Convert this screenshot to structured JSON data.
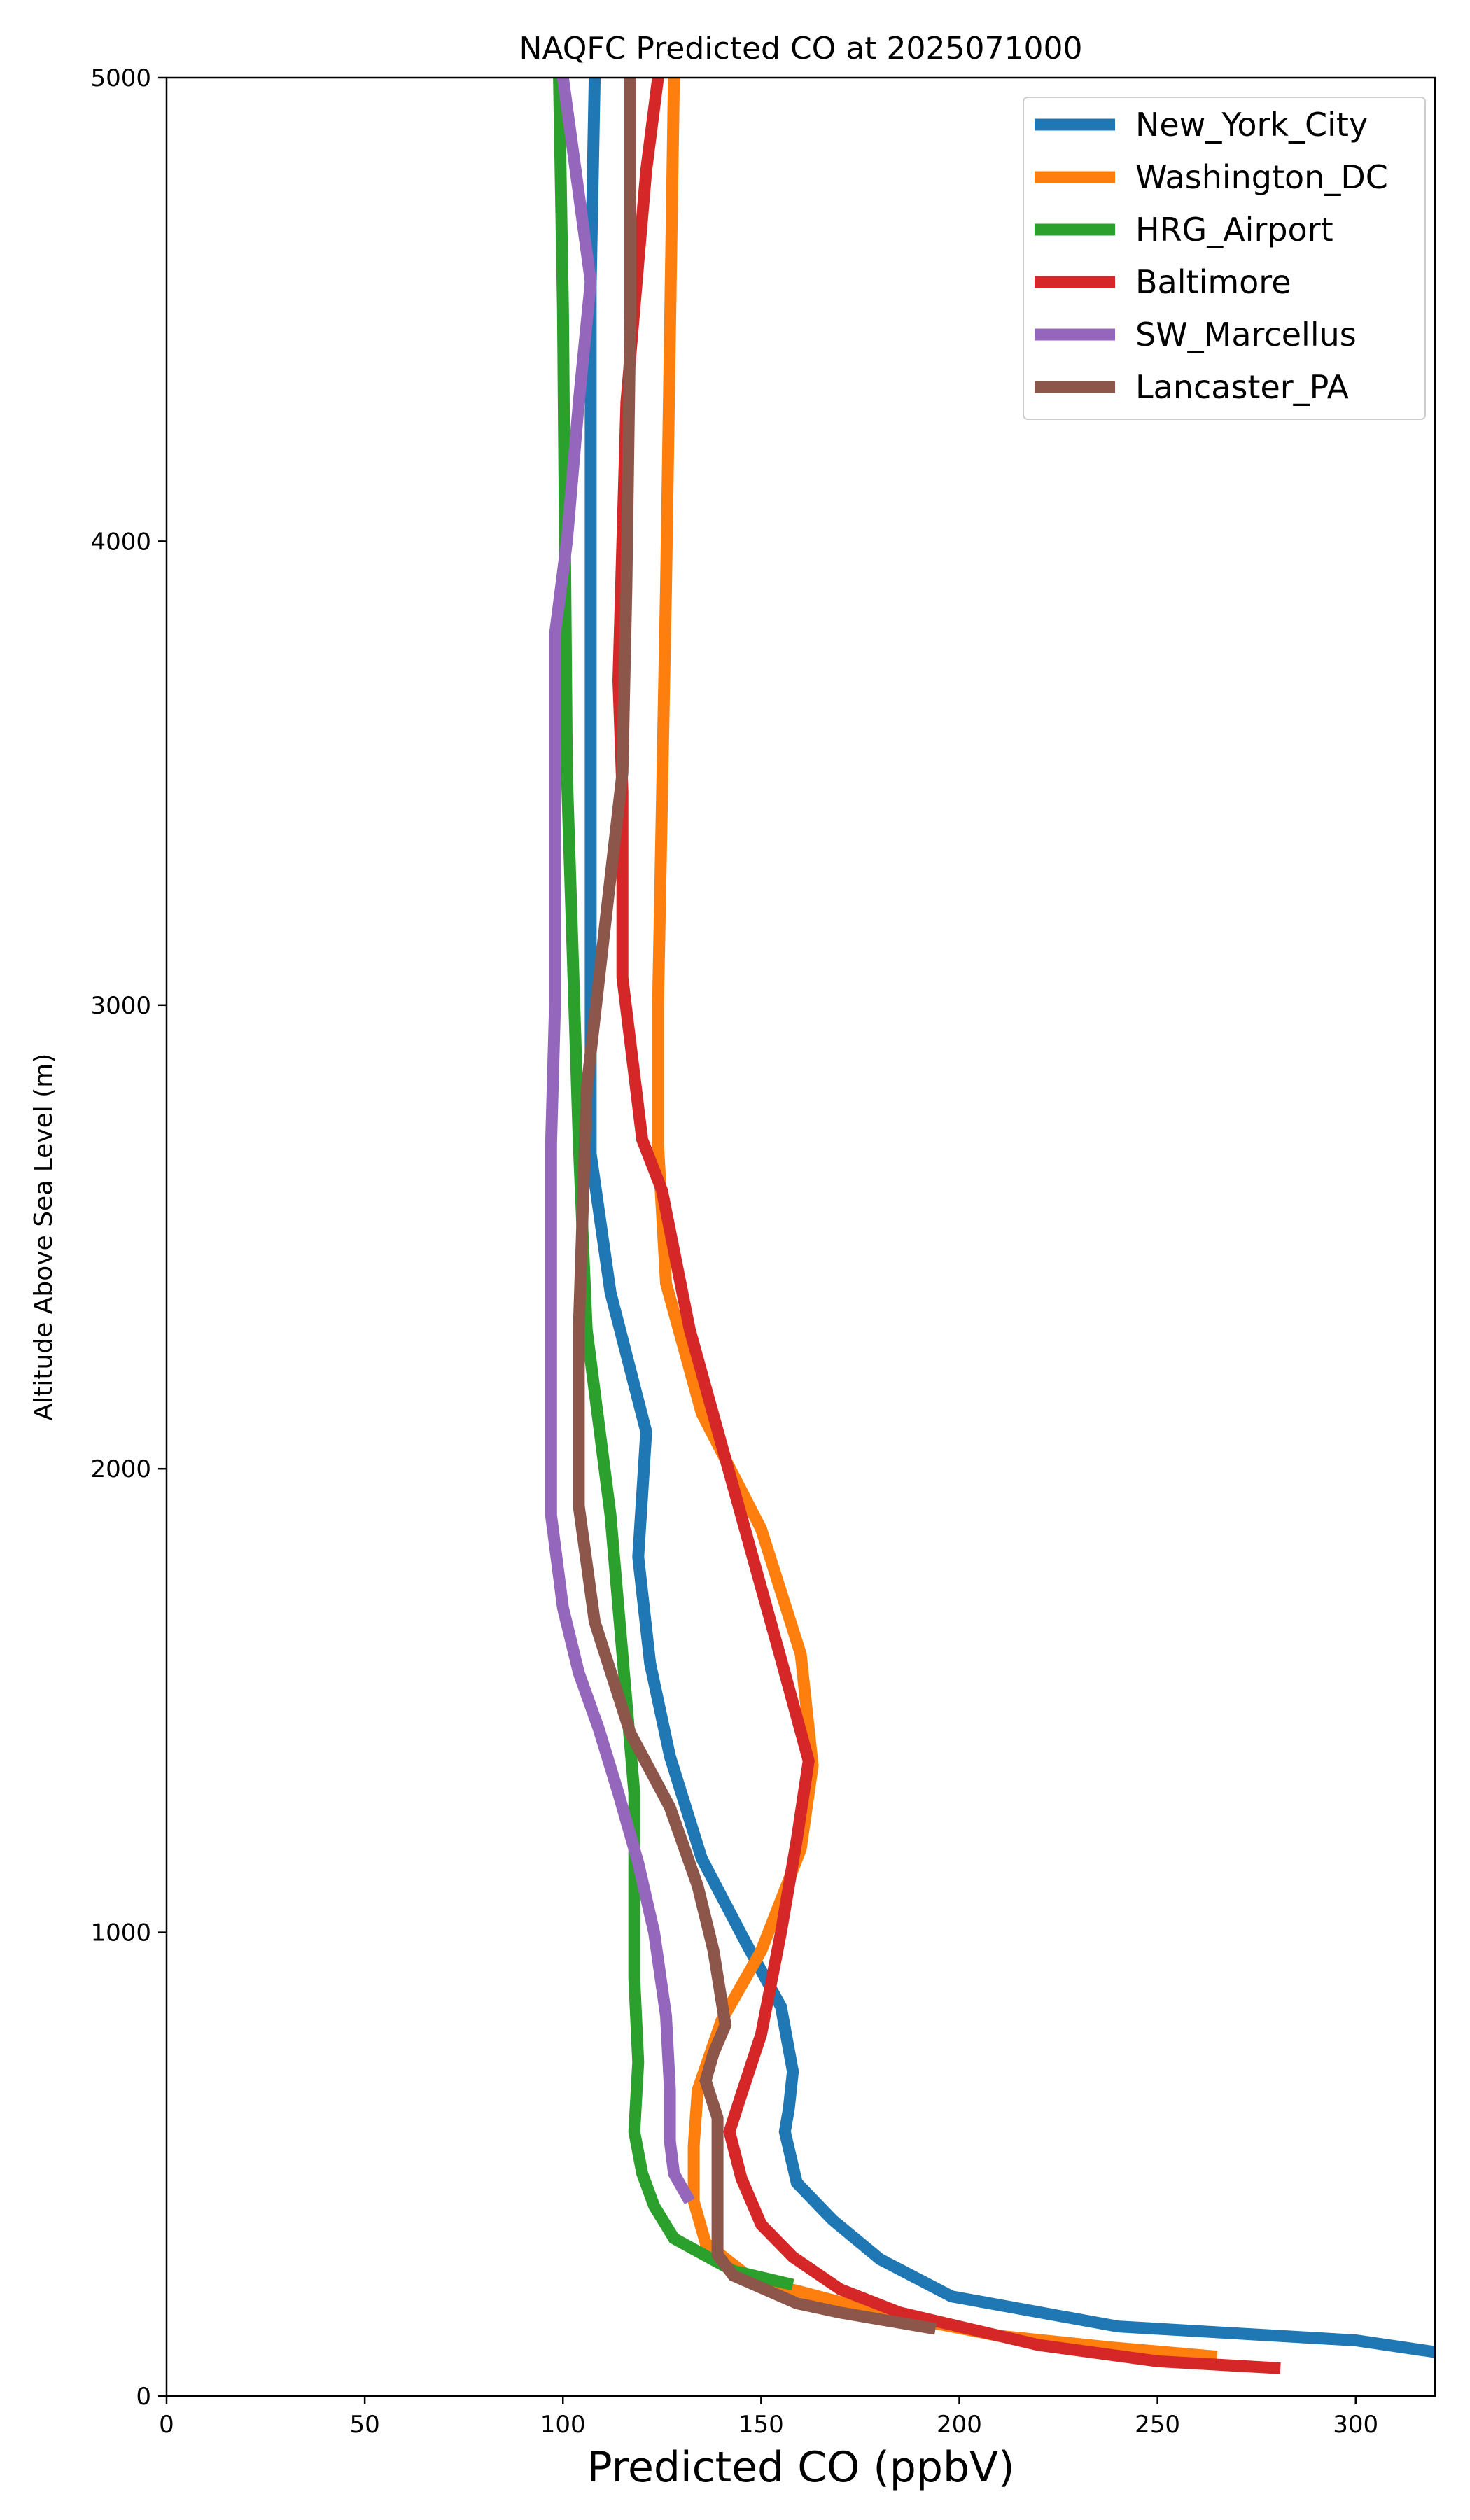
{
  "chart_data": {
    "type": "line",
    "title": "NAQFC Predicted CO at 2025071000",
    "xlabel": "Predicted CO (ppbV)",
    "ylabel": "Altitude Above Sea Level (m)",
    "xlim": [
      0,
      320
    ],
    "ylim": [
      0,
      5000
    ],
    "xticks": [
      0,
      50,
      100,
      150,
      200,
      250,
      300
    ],
    "yticks": [
      0,
      1000,
      2000,
      3000,
      4000,
      5000
    ],
    "grid": false,
    "legend_position": "top-right",
    "series": [
      {
        "name": "New_York_City",
        "color": "#1f77b4",
        "points": [
          [
            320,
            95
          ],
          [
            300,
            120
          ],
          [
            240,
            150
          ],
          [
            198,
            215
          ],
          [
            180,
            295
          ],
          [
            168,
            380
          ],
          [
            159,
            460
          ],
          [
            156,
            570
          ],
          [
            157,
            620
          ],
          [
            158,
            700
          ],
          [
            155,
            840
          ],
          [
            146,
            980
          ],
          [
            135,
            1160
          ],
          [
            127,
            1380
          ],
          [
            122,
            1580
          ],
          [
            119,
            1810
          ],
          [
            121,
            2080
          ],
          [
            112,
            2380
          ],
          [
            107,
            2680
          ],
          [
            107,
            3000
          ],
          [
            107,
            4000
          ],
          [
            107,
            4550
          ],
          [
            108,
            5000
          ]
        ]
      },
      {
        "name": "Washington_DC",
        "color": "#ff7f0e",
        "points": [
          [
            265,
            85
          ],
          [
            238,
            105
          ],
          [
            210,
            130
          ],
          [
            180,
            180
          ],
          [
            160,
            225
          ],
          [
            148,
            250
          ],
          [
            136,
            330
          ],
          [
            133,
            420
          ],
          [
            133,
            540
          ],
          [
            134,
            660
          ],
          [
            140,
            810
          ],
          [
            150,
            960
          ],
          [
            160,
            1180
          ],
          [
            163,
            1360
          ],
          [
            160,
            1600
          ],
          [
            150,
            1870
          ],
          [
            135,
            2120
          ],
          [
            126,
            2400
          ],
          [
            124,
            2700
          ],
          [
            124,
            3000
          ],
          [
            126,
            3900
          ],
          [
            128,
            5000
          ]
        ]
      },
      {
        "name": "HRG_Airport",
        "color": "#2ca02c",
        "points": [
          [
            158,
            240
          ],
          [
            143,
            270
          ],
          [
            128,
            340
          ],
          [
            123,
            410
          ],
          [
            120,
            480
          ],
          [
            118,
            570
          ],
          [
            119,
            720
          ],
          [
            118,
            900
          ],
          [
            118,
            1300
          ],
          [
            112,
            1900
          ],
          [
            106,
            2300
          ],
          [
            104,
            2700
          ],
          [
            101,
            3500
          ],
          [
            100,
            4500
          ],
          [
            99,
            5000
          ]
        ]
      },
      {
        "name": "Baltimore",
        "color": "#d62728",
        "points": [
          [
            281,
            60
          ],
          [
            250,
            75
          ],
          [
            220,
            110
          ],
          [
            185,
            180
          ],
          [
            170,
            230
          ],
          [
            158,
            300
          ],
          [
            150,
            370
          ],
          [
            145,
            470
          ],
          [
            142,
            570
          ],
          [
            145,
            650
          ],
          [
            150,
            780
          ],
          [
            155,
            1000
          ],
          [
            159,
            1200
          ],
          [
            162,
            1370
          ],
          [
            155,
            1590
          ],
          [
            143,
            1960
          ],
          [
            132,
            2300
          ],
          [
            125,
            2600
          ],
          [
            120,
            2710
          ],
          [
            115,
            3060
          ],
          [
            115,
            3460
          ],
          [
            114,
            3700
          ],
          [
            116,
            4300
          ],
          [
            121,
            4800
          ],
          [
            124,
            5000
          ]
        ]
      },
      {
        "name": "SW_Marcellus",
        "color": "#9467bd",
        "points": [
          [
            132,
            420
          ],
          [
            128,
            480
          ],
          [
            127,
            550
          ],
          [
            127,
            660
          ],
          [
            126,
            820
          ],
          [
            123,
            1000
          ],
          [
            119,
            1150
          ],
          [
            114,
            1300
          ],
          [
            109,
            1440
          ],
          [
            104,
            1560
          ],
          [
            100,
            1700
          ],
          [
            97,
            1900
          ],
          [
            97,
            2150
          ],
          [
            97,
            2700
          ],
          [
            98,
            3000
          ],
          [
            98,
            3800
          ],
          [
            101,
            4000
          ],
          [
            104,
            4300
          ],
          [
            107,
            4560
          ],
          [
            104,
            4750
          ],
          [
            100,
            5000
          ]
        ]
      },
      {
        "name": "Lancaster_PA",
        "color": "#8c564b",
        "points": [
          [
            194,
            145
          ],
          [
            170,
            180
          ],
          [
            159,
            200
          ],
          [
            143,
            260
          ],
          [
            139,
            305
          ],
          [
            139,
            360
          ],
          [
            139,
            440
          ],
          [
            139,
            600
          ],
          [
            136,
            680
          ],
          [
            138,
            740
          ],
          [
            141,
            800
          ],
          [
            138,
            960
          ],
          [
            134,
            1100
          ],
          [
            127,
            1270
          ],
          [
            117,
            1430
          ],
          [
            108,
            1670
          ],
          [
            104,
            1920
          ],
          [
            104,
            2300
          ],
          [
            106,
            2820
          ],
          [
            111,
            3200
          ],
          [
            115,
            3500
          ],
          [
            116,
            3900
          ],
          [
            117,
            4500
          ],
          [
            117,
            5000
          ]
        ]
      }
    ]
  }
}
